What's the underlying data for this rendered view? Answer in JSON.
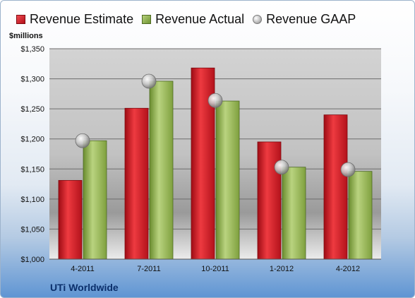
{
  "legend": {
    "estimate": "Revenue Estimate",
    "actual": "Revenue Actual",
    "gaap": "Revenue GAAP"
  },
  "units_label": "$millions",
  "company": "UTi Worldwide",
  "colors": {
    "estimate": "#c81a24",
    "actual": "#8fb04f",
    "gaap": "#b8b8b8"
  },
  "chart_data": {
    "type": "bar",
    "categories": [
      "4-2011",
      "7-2011",
      "10-2011",
      "1-2012",
      "4-2012"
    ],
    "series": [
      {
        "name": "Revenue Estimate",
        "values": [
          1131,
          1251,
          1318,
          1195,
          1240
        ]
      },
      {
        "name": "Revenue Actual",
        "values": [
          1197,
          1296,
          1263,
          1153,
          1146
        ]
      },
      {
        "name": "Revenue GAAP",
        "marker": "circle",
        "values": [
          1197,
          1296,
          1264,
          1153,
          1149
        ]
      }
    ],
    "ylabel": "$millions",
    "ylim": [
      1000,
      1350
    ],
    "yticks": [
      1000,
      1050,
      1100,
      1150,
      1200,
      1250,
      1300,
      1350
    ],
    "ytick_labels": [
      "$1,000",
      "$1,050",
      "$1,100",
      "$1,150",
      "$1,200",
      "$1,250",
      "$1,300",
      "$1,350"
    ],
    "grid": true,
    "legend_position": "top"
  }
}
